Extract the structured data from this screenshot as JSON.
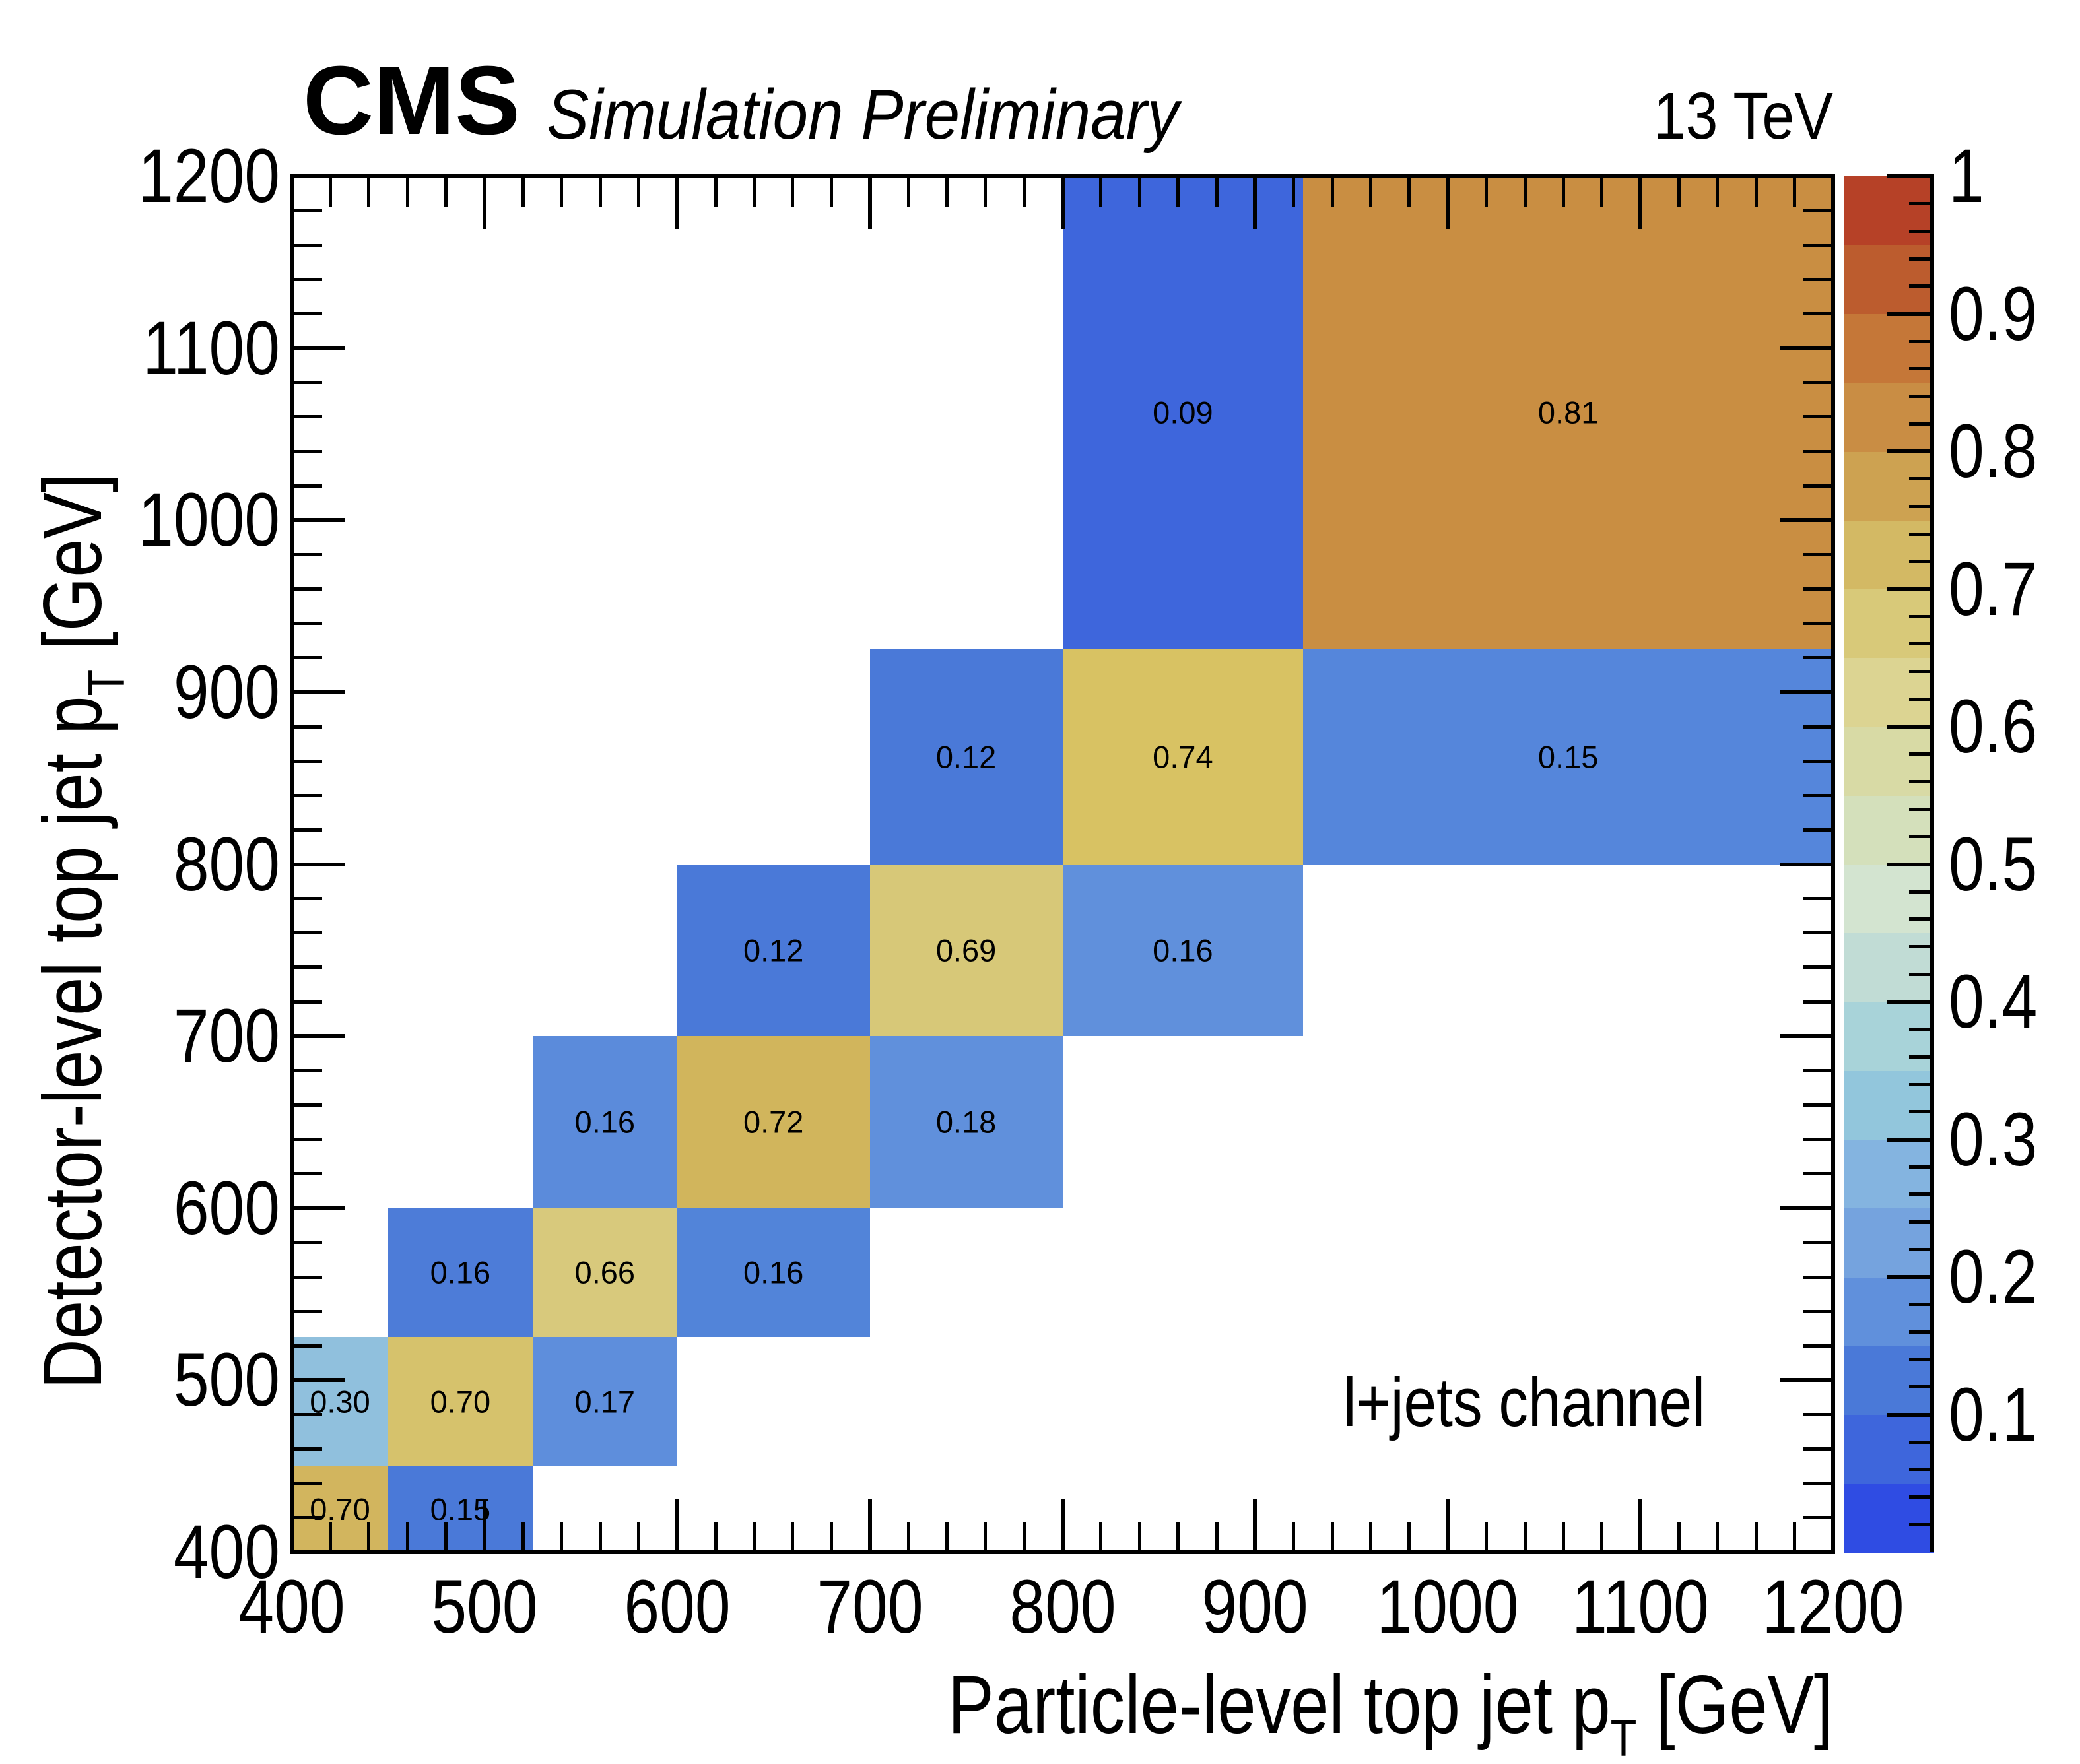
{
  "header": {
    "experiment": "CMS",
    "label": "Simulation Preliminary",
    "energy": "13 TeV"
  },
  "annotation": "l+jets channel",
  "chart_data": {
    "type": "heatmap",
    "title": "",
    "xlabel": {
      "prefix": "Particle-level top jet p",
      "sub": "T",
      "suffix": " [GeV]"
    },
    "ylabel": {
      "prefix": "Detector-level top jet p",
      "sub": "T",
      "suffix": " [GeV]"
    },
    "axes": {
      "xmin": 400,
      "xmax": 1200,
      "ymin": 400,
      "ymax": 1200,
      "x_major_ticks": [
        400,
        500,
        600,
        700,
        800,
        900,
        1000,
        1100,
        1200
      ],
      "x_tick_labels": [
        "400",
        "500",
        "600",
        "700",
        "800",
        "900",
        "1000",
        "1100",
        "1200"
      ],
      "y_major_ticks": [
        400,
        500,
        600,
        700,
        800,
        900,
        1000,
        1100,
        1200
      ],
      "y_tick_labels": [
        "400",
        "500",
        "600",
        "700",
        "800",
        "900",
        "1000",
        "1100",
        "1200"
      ],
      "minor_tick_step": 20,
      "grid": false
    },
    "bin_edges": [
      400,
      450,
      525,
      600,
      700,
      800,
      925,
      1200
    ],
    "cells": [
      {
        "xbin": 0,
        "ybin": 0,
        "value": 0.7,
        "label": "0.70",
        "color": "#d2b55e"
      },
      {
        "xbin": 1,
        "ybin": 0,
        "value": 0.15,
        "label": "0.15",
        "color": "#4a79d8"
      },
      {
        "xbin": 0,
        "ybin": 1,
        "value": 0.3,
        "label": "0.30",
        "color": "#90c0dd"
      },
      {
        "xbin": 1,
        "ybin": 1,
        "value": 0.7,
        "label": "0.70",
        "color": "#d6c26c"
      },
      {
        "xbin": 2,
        "ybin": 1,
        "value": 0.17,
        "label": "0.17",
        "color": "#5e8edc"
      },
      {
        "xbin": 1,
        "ybin": 2,
        "value": 0.16,
        "label": "0.16",
        "color": "#4d7cd8"
      },
      {
        "xbin": 2,
        "ybin": 2,
        "value": 0.66,
        "label": "0.66",
        "color": "#d8c97c"
      },
      {
        "xbin": 3,
        "ybin": 2,
        "value": 0.16,
        "label": "0.16",
        "color": "#5284d9"
      },
      {
        "xbin": 2,
        "ybin": 3,
        "value": 0.16,
        "label": "0.16",
        "color": "#5b8bdb"
      },
      {
        "xbin": 3,
        "ybin": 3,
        "value": 0.72,
        "label": "0.72",
        "color": "#d1b55c"
      },
      {
        "xbin": 4,
        "ybin": 3,
        "value": 0.18,
        "label": "0.18",
        "color": "#6090dc"
      },
      {
        "xbin": 3,
        "ybin": 4,
        "value": 0.12,
        "label": "0.12",
        "color": "#4a79d8"
      },
      {
        "xbin": 4,
        "ybin": 4,
        "value": 0.69,
        "label": "0.69",
        "color": "#d7c878"
      },
      {
        "xbin": 5,
        "ybin": 4,
        "value": 0.16,
        "label": "0.16",
        "color": "#6090dc"
      },
      {
        "xbin": 4,
        "ybin": 5,
        "value": 0.12,
        "label": "0.12",
        "color": "#4a79d8"
      },
      {
        "xbin": 5,
        "ybin": 5,
        "value": 0.74,
        "label": "0.74",
        "color": "#d8c263"
      },
      {
        "xbin": 6,
        "ybin": 5,
        "value": 0.15,
        "label": "0.15",
        "color": "#5586db"
      },
      {
        "xbin": 5,
        "ybin": 6,
        "value": 0.09,
        "label": "0.09",
        "color": "#3e66dc"
      },
      {
        "xbin": 6,
        "ybin": 6,
        "value": 0.81,
        "label": "0.81",
        "color": "#c98e42"
      }
    ],
    "colorbar": {
      "min": 0,
      "max": 1,
      "band_size": 0.05,
      "bands_bottom_to_top": [
        "#2f4ce3",
        "#3e66dc",
        "#4a79d8",
        "#6090dc",
        "#75a3de",
        "#84b4e0",
        "#92c6dc",
        "#a8d3d9",
        "#c1dcd5",
        "#d3e4d0",
        "#d4e0bb",
        "#d8daa5",
        "#dcd492",
        "#d8c979",
        "#d3b964",
        "#cda251",
        "#c98d44",
        "#c57738",
        "#bc5c2e",
        "#b64127"
      ],
      "tick_values": [
        1,
        0.9,
        0.8,
        0.7,
        0.6,
        0.5,
        0.4,
        0.3,
        0.2,
        0.1
      ],
      "tick_labels": [
        "1",
        "0.9",
        "0.8",
        "0.7",
        "0.6",
        "0.5",
        "0.4",
        "0.3",
        "0.2",
        "0.1"
      ],
      "minor_tick_step": 0.02
    }
  }
}
